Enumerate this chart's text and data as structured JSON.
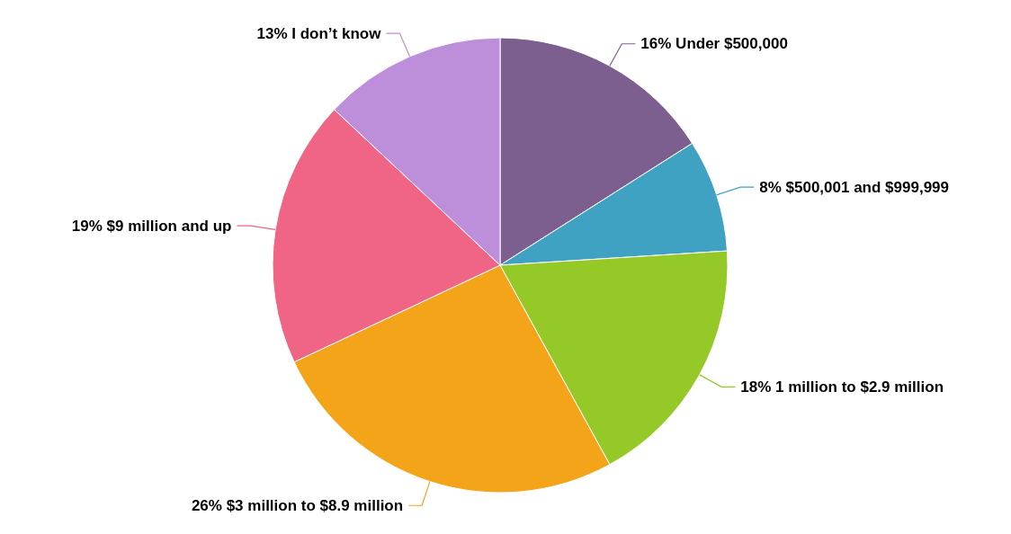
{
  "chart_data": {
    "type": "pie",
    "categories": [
      "Under $500,000",
      "$500,001 and $999,999",
      "1 million to $2.9 million",
      "$3 million to $8.9 million",
      "$9 million and up",
      "I don’t know"
    ],
    "values": [
      16,
      8,
      18,
      26,
      19,
      13
    ],
    "value_labels": [
      "16%",
      "8%",
      "18%",
      "26%",
      "19%",
      "13%"
    ],
    "colors": [
      "#7d5f8f",
      "#40a2c3",
      "#95c927",
      "#f4a418",
      "#f06485",
      "#bd8ed9"
    ],
    "legend": false
  }
}
